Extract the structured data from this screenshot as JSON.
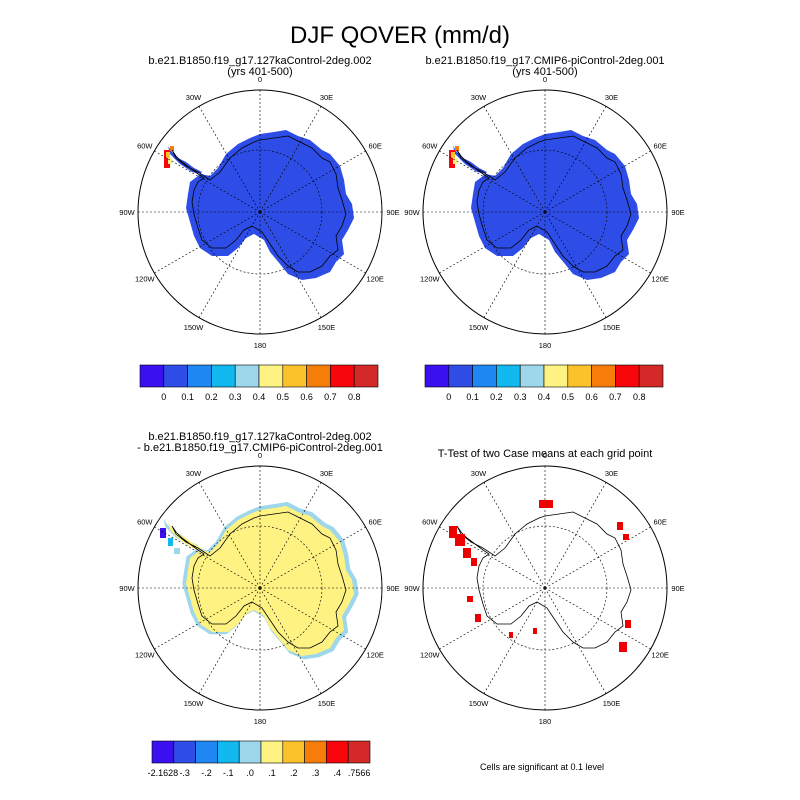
{
  "figure": {
    "title": "DJF QOVER (mm/d)"
  },
  "panels": [
    {
      "id": "case1",
      "title_line1": "b.e21.B1850.f19_g17.127kaControl-2deg.002",
      "title_line2": "(yrs 401-500)"
    },
    {
      "id": "case2",
      "title_line1": "b.e21.B1850.f19_g17.CMIP6-piControl-2deg.001",
      "title_line2": "(yrs 401-500)"
    },
    {
      "id": "diff",
      "title_line1": "b.e21.B1850.f19_g17.127kaControl-2deg.002",
      "title_line2": "- b.e21.B1850.f19_g17.CMIP6-piControl-2deg.001"
    },
    {
      "id": "ttest",
      "title_line1": "T-Test of two Case means at each grid point",
      "title_line2": ""
    }
  ],
  "map_labels": {
    "lon": [
      "0",
      "30E",
      "60E",
      "90E",
      "120E",
      "150E",
      "180",
      "150W",
      "120W",
      "90W",
      "60W",
      "30W"
    ]
  },
  "colorbars": {
    "abs": {
      "colors": [
        "#3a10f0",
        "#2e4de6",
        "#1f87f2",
        "#12b8f0",
        "#9ed6ec",
        "#fef382",
        "#fbc22a",
        "#f77d0b",
        "#f7070b",
        "#d42929"
      ],
      "labels": [
        "0",
        "0.1",
        "0.2",
        "0.3",
        "0.4",
        "0.5",
        "0.6",
        "0.7",
        "0.8"
      ]
    },
    "diff": {
      "colors": [
        "#3a10f0",
        "#2e4de6",
        "#1f87f2",
        "#12b8f0",
        "#9ed6ec",
        "#fef382",
        "#fbc22a",
        "#f77d0b",
        "#f7070b",
        "#d42929"
      ],
      "labels": [
        "-2.1628",
        "-.3",
        "-.2",
        "-.1",
        ".0",
        ".1",
        ".2",
        ".3",
        ".4",
        ".7566"
      ]
    }
  },
  "ttest_note": "Cells are significant at 0.1 level",
  "colors": {
    "case_fill": "#2e4de6",
    "diff_fill": "#fef382",
    "diff_edge": "#9ed6ec",
    "significant": "#ee0000"
  }
}
